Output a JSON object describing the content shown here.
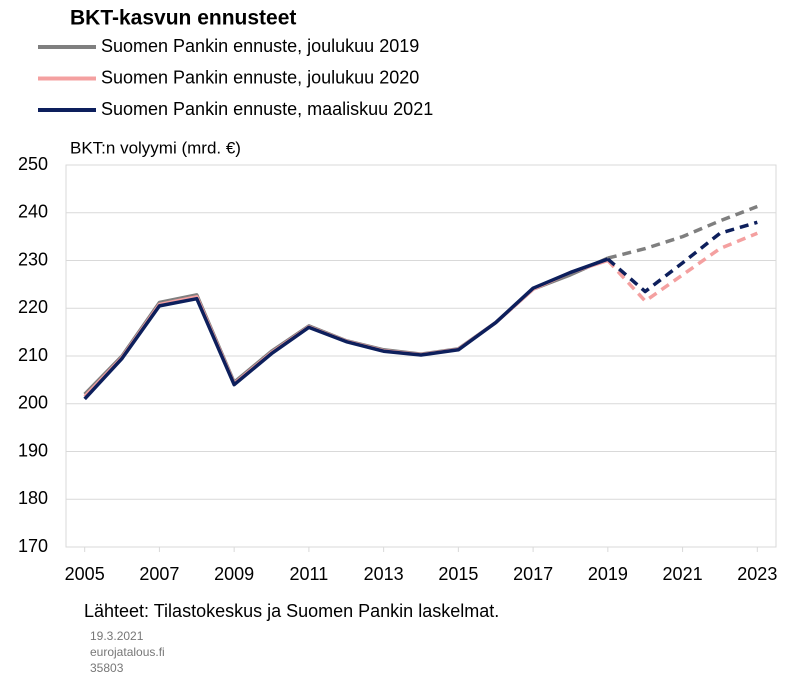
{
  "chart_data": {
    "type": "line",
    "title": "BKT-kasvun ennusteet",
    "y_label": "BKT:n volyymi (mrd. €)",
    "source": "Lähteet: Tilastokeskus ja Suomen Pankin laskelmat.",
    "footnotes": [
      "19.3.2021",
      "eurojatalous.fi",
      "35803"
    ],
    "x": [
      2005,
      2006,
      2007,
      2008,
      2009,
      2010,
      2011,
      2012,
      2013,
      2014,
      2015,
      2016,
      2017,
      2018,
      2019,
      2020,
      2021,
      2022,
      2023
    ],
    "series": [
      {
        "name": "Suomen Pankin ennuste, joulukuu 2019",
        "color": "#7f7f7f",
        "values": [
          202,
          210,
          221.2,
          222.8,
          204.5,
          211,
          216.3,
          213.2,
          211.3,
          210.4,
          211.5,
          217,
          224,
          227,
          230.5,
          232.5,
          235,
          238.3,
          241.3
        ]
      },
      {
        "name": "Suomen Pankin ennuste, joulukuu 2020",
        "color": "#f4a0a0",
        "values": [
          201.5,
          209.7,
          220.8,
          222.4,
          204.2,
          210.7,
          216.1,
          213.1,
          211.1,
          210.3,
          211.4,
          217,
          224,
          227.5,
          230,
          221.5,
          227,
          232.5,
          235.7
        ]
      },
      {
        "name": "Suomen Pankin ennuste, maaliskuu 2021",
        "color": "#0d1f5c",
        "values": [
          201,
          209.5,
          220.5,
          222,
          204,
          210.5,
          216,
          213,
          211,
          210.2,
          211.3,
          217,
          224.2,
          227.5,
          230.3,
          223.5,
          229.5,
          235.7,
          238
        ]
      }
    ],
    "dashed_from": 2019,
    "xlim": [
      2004.5,
      2023.5
    ],
    "xticks": [
      2005,
      2007,
      2009,
      2011,
      2013,
      2015,
      2017,
      2019,
      2021,
      2023
    ],
    "ylim": [
      170,
      250
    ],
    "yticks": [
      170,
      180,
      190,
      200,
      210,
      220,
      230,
      240,
      250
    ],
    "grid": true
  }
}
